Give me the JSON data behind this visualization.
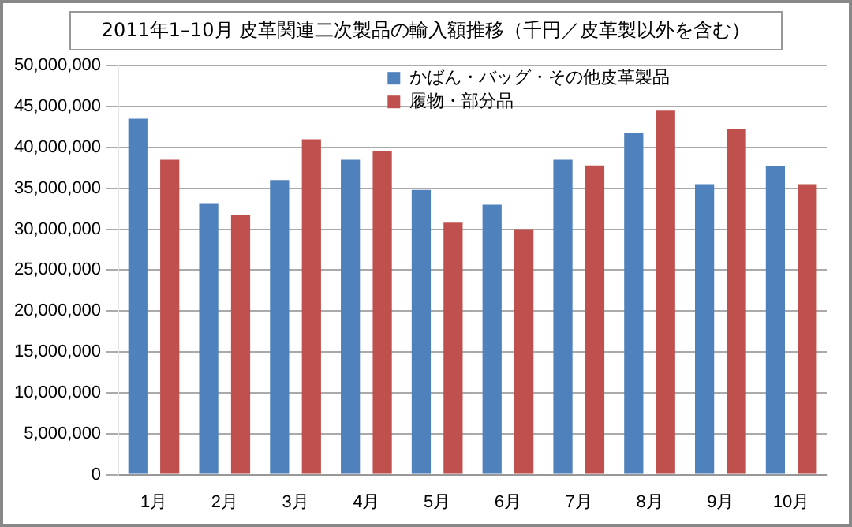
{
  "chart_data": {
    "type": "bar",
    "title": "2011年1–10月  皮革関連二次製品の輸入額推移（千円／皮革製以外を含む）",
    "categories": [
      "1月",
      "2月",
      "3月",
      "4月",
      "5月",
      "6月",
      "7月",
      "8月",
      "9月",
      "10月"
    ],
    "series": [
      {
        "name": "かばん・バッグ・その他皮革製品",
        "color": "#4f81bd",
        "values": [
          43500000,
          33200000,
          36000000,
          38500000,
          34800000,
          33000000,
          38500000,
          41800000,
          35500000,
          37700000
        ]
      },
      {
        "name": "履物・部分品",
        "color": "#c0504d",
        "values": [
          38500000,
          31800000,
          41000000,
          39500000,
          30800000,
          30000000,
          37800000,
          44500000,
          42200000,
          35500000
        ]
      }
    ],
    "ylim": [
      0,
      50000000
    ],
    "yticks": [
      0,
      {
        "value": 5000000,
        "label": "5,000,000"
      },
      {
        "value": 10000000,
        "label": "10,000,000"
      },
      {
        "value": 15000000,
        "label": "15,000,000"
      },
      {
        "value": 20000000,
        "label": "20,000,000"
      },
      {
        "value": 25000000,
        "label": "25,000,000"
      },
      {
        "value": 30000000,
        "label": "30,000,000"
      },
      {
        "value": 35000000,
        "label": "35,000,000"
      },
      {
        "value": 40000000,
        "label": "40,000,000"
      },
      {
        "value": 45000000,
        "label": "45,000,000"
      },
      {
        "value": 50000000,
        "label": "50,000,000"
      }
    ],
    "grid": "y",
    "legend": "top right"
  }
}
